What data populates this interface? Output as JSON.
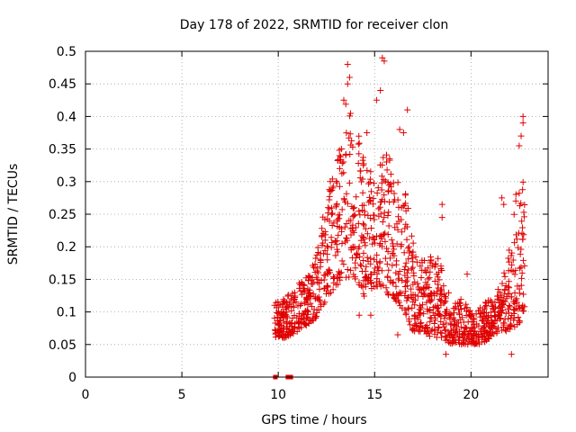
{
  "chart_data": {
    "type": "scatter",
    "title": "Day 178 of 2022, SRMTID for receiver clon",
    "xlabel": "GPS time / hours",
    "ylabel": "SRMTID / TECUs",
    "xlim": [
      0,
      24
    ],
    "ylim": [
      0,
      0.5
    ],
    "xticks": [
      0,
      5,
      10,
      15,
      20
    ],
    "xtick_labels": [
      "0",
      "5",
      "10",
      "15",
      "20"
    ],
    "yticks": [
      0,
      0.05,
      0.1,
      0.15,
      0.2,
      0.25,
      0.3,
      0.35,
      0.4,
      0.45,
      0.5
    ],
    "ytick_labels": [
      "0",
      "0.05",
      "0.1",
      "0.15",
      "0.2",
      "0.25",
      "0.3",
      "0.35",
      "0.4",
      "0.45",
      "0.5"
    ],
    "grid": true,
    "marker": "+",
    "color": "#e00000",
    "square_markers": [
      {
        "x": 9.85,
        "y": 0
      },
      {
        "x": 10.5,
        "y": 0
      },
      {
        "x": 10.65,
        "y": 0
      }
    ],
    "envelope": [
      {
        "x": 9.8,
        "lo": 0.06,
        "hi": 0.12
      },
      {
        "x": 10.4,
        "lo": 0.06,
        "hi": 0.12
      },
      {
        "x": 11.0,
        "lo": 0.07,
        "hi": 0.15
      },
      {
        "x": 11.5,
        "lo": 0.08,
        "hi": 0.16
      },
      {
        "x": 12.0,
        "lo": 0.09,
        "hi": 0.19
      },
      {
        "x": 12.5,
        "lo": 0.12,
        "hi": 0.28
      },
      {
        "x": 13.0,
        "lo": 0.14,
        "hi": 0.33
      },
      {
        "x": 13.5,
        "lo": 0.15,
        "hi": 0.42
      },
      {
        "x": 14.0,
        "lo": 0.15,
        "hi": 0.4
      },
      {
        "x": 14.5,
        "lo": 0.12,
        "hi": 0.34
      },
      {
        "x": 15.0,
        "lo": 0.14,
        "hi": 0.3
      },
      {
        "x": 15.5,
        "lo": 0.13,
        "hi": 0.36
      },
      {
        "x": 16.0,
        "lo": 0.12,
        "hi": 0.32
      },
      {
        "x": 16.5,
        "lo": 0.1,
        "hi": 0.3
      },
      {
        "x": 17.0,
        "lo": 0.07,
        "hi": 0.22
      },
      {
        "x": 17.5,
        "lo": 0.07,
        "hi": 0.18
      },
      {
        "x": 18.0,
        "lo": 0.06,
        "hi": 0.2
      },
      {
        "x": 18.5,
        "lo": 0.06,
        "hi": 0.17
      },
      {
        "x": 19.0,
        "lo": 0.05,
        "hi": 0.12
      },
      {
        "x": 19.5,
        "lo": 0.05,
        "hi": 0.12
      },
      {
        "x": 20.0,
        "lo": 0.05,
        "hi": 0.11
      },
      {
        "x": 20.5,
        "lo": 0.05,
        "hi": 0.11
      },
      {
        "x": 21.0,
        "lo": 0.06,
        "hi": 0.12
      },
      {
        "x": 21.5,
        "lo": 0.07,
        "hi": 0.14
      },
      {
        "x": 22.0,
        "lo": 0.07,
        "hi": 0.2
      },
      {
        "x": 22.4,
        "lo": 0.08,
        "hi": 0.3
      },
      {
        "x": 22.8,
        "lo": 0.09,
        "hi": 0.32
      }
    ],
    "outliers": [
      {
        "x": 13.6,
        "y": 0.48
      },
      {
        "x": 15.4,
        "y": 0.49
      },
      {
        "x": 15.5,
        "y": 0.485
      },
      {
        "x": 13.6,
        "y": 0.45
      },
      {
        "x": 13.7,
        "y": 0.46
      },
      {
        "x": 13.4,
        "y": 0.425
      },
      {
        "x": 15.3,
        "y": 0.44
      },
      {
        "x": 15.1,
        "y": 0.425
      },
      {
        "x": 16.7,
        "y": 0.41
      },
      {
        "x": 22.7,
        "y": 0.4
      },
      {
        "x": 22.7,
        "y": 0.39
      },
      {
        "x": 22.6,
        "y": 0.37
      },
      {
        "x": 22.5,
        "y": 0.355
      },
      {
        "x": 14.6,
        "y": 0.375
      },
      {
        "x": 16.3,
        "y": 0.38
      },
      {
        "x": 16.5,
        "y": 0.375
      },
      {
        "x": 12.7,
        "y": 0.3
      },
      {
        "x": 12.7,
        "y": 0.285
      },
      {
        "x": 21.6,
        "y": 0.275
      },
      {
        "x": 21.7,
        "y": 0.265
      },
      {
        "x": 18.5,
        "y": 0.265
      },
      {
        "x": 18.5,
        "y": 0.245
      },
      {
        "x": 19.8,
        "y": 0.158
      },
      {
        "x": 14.2,
        "y": 0.095
      },
      {
        "x": 14.8,
        "y": 0.095
      },
      {
        "x": 16.2,
        "y": 0.065
      },
      {
        "x": 22.1,
        "y": 0.035
      },
      {
        "x": 18.7,
        "y": 0.035
      }
    ],
    "n_points": 1300,
    "seed": 178
  }
}
